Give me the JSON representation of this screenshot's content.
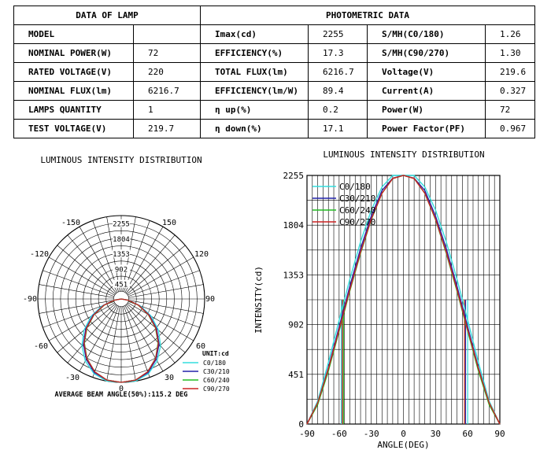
{
  "table": {
    "headers": {
      "lamp": "DATA OF LAMP",
      "photometric": "PHOTOMETRIC DATA"
    },
    "rows": [
      {
        "k1": "MODEL",
        "v1": "",
        "k2": "Imax(cd)",
        "v2": "2255",
        "k3": "S/MH(C0/180)",
        "v3": "1.26"
      },
      {
        "k1": "NOMINAL POWER(W)",
        "v1": "72",
        "k2": "EFFICIENCY(%)",
        "v2": "17.3",
        "k3": "S/MH(C90/270)",
        "v3": "1.30"
      },
      {
        "k1": "RATED VOLTAGE(V)",
        "v1": "220",
        "k2": "TOTAL FLUX(lm)",
        "v2": "6216.7",
        "k3": "Voltage(V)",
        "v3": "219.6"
      },
      {
        "k1": "NOMINAL FLUX(lm)",
        "v1": "6216.7",
        "k2": "EFFICIENCY(lm/W)",
        "v2": "89.4",
        "k3": "Current(A)",
        "v3": "0.327"
      },
      {
        "k1": "LAMPS QUANTITY",
        "v1": "1",
        "k2": "η up(%)",
        "v2": "0.2",
        "k3": "Power(W)",
        "v3": "72"
      },
      {
        "k1": "TEST VOLTAGE(V)",
        "v1": "219.7",
        "k2": "η down(%)",
        "v2": "17.1",
        "k3": "Power Factor(PF)",
        "v3": "0.967"
      }
    ]
  },
  "chart_data": [
    {
      "type": "polar",
      "title": "LUMINOUS INTENSITY DISTRIBUTION",
      "radial_ticks": [
        "451",
        "902",
        "1353",
        "1804",
        "2255"
      ],
      "radial_max": 2255,
      "angle_labels": [
        "-150",
        "150",
        "-120",
        "120",
        "-90",
        "90",
        "-60",
        "60",
        "-30",
        "0",
        "30"
      ],
      "unit_label": "UNIT:cd",
      "beam_angle_text": "AVERAGE BEAM ANGLE(50%):115.2 DEG",
      "series": [
        {
          "name": "C0/180",
          "color": "#33dddd",
          "width_factor": 1.04
        },
        {
          "name": "C30/210",
          "color": "#2222aa",
          "width_factor": 1.02
        },
        {
          "name": "C60/240",
          "color": "#22bb22",
          "width_factor": 1.0
        },
        {
          "name": "C90/270",
          "color": "#cc2222",
          "width_factor": 0.98
        }
      ]
    },
    {
      "type": "line",
      "title": "LUMINOUS INTENSITY DISTRIBUTION",
      "xlabel": "ANGLE(DEG)",
      "ylabel": "INTENSITY(cd)",
      "xlim": [
        -90,
        90
      ],
      "ylim": [
        0,
        2255
      ],
      "xticks": [
        "-90",
        "-60",
        "-30",
        "0",
        "30",
        "60",
        "90"
      ],
      "yticks": [
        "0",
        "451",
        "902",
        "1353",
        "1804",
        "2255"
      ],
      "x": [
        -90,
        -80,
        -70,
        -60,
        -50,
        -40,
        -30,
        -20,
        -10,
        0,
        10,
        20,
        30,
        40,
        50,
        60,
        70,
        80,
        90
      ],
      "series": [
        {
          "name": "C0/180",
          "color": "#33dddd",
          "values": [
            0,
            209,
            559,
            941,
            1314,
            1654,
            1941,
            2151,
            2255,
            2255,
            2255,
            2151,
            1941,
            1654,
            1314,
            941,
            559,
            209,
            0
          ]
        },
        {
          "name": "C30/210",
          "color": "#2222aa",
          "values": [
            0,
            186,
            512,
            880,
            1250,
            1593,
            1887,
            2119,
            2230,
            2255,
            2230,
            2119,
            1887,
            1593,
            1250,
            880,
            512,
            186,
            0
          ]
        },
        {
          "name": "C60/240",
          "color": "#22bb22",
          "values": [
            0,
            176,
            482,
            842,
            1206,
            1550,
            1855,
            2093,
            2227,
            2255,
            2227,
            2093,
            1855,
            1550,
            1206,
            842,
            482,
            176,
            0
          ]
        },
        {
          "name": "C90/270",
          "color": "#cc2222",
          "values": [
            0,
            193,
            502,
            856,
            1219,
            1561,
            1860,
            2094,
            2227,
            2255,
            2227,
            2094,
            1860,
            1561,
            1219,
            856,
            502,
            193,
            0
          ]
        }
      ],
      "beam_markers": [
        {
          "color": "#33dddd",
          "x": [
            -58,
            60
          ]
        },
        {
          "color": "#2222aa",
          "x": [
            -57,
            58
          ]
        },
        {
          "color": "#22bb22",
          "x": [
            -56,
            57
          ]
        },
        {
          "color": "#cc2222",
          "x": [
            -57,
            57
          ]
        }
      ]
    }
  ]
}
